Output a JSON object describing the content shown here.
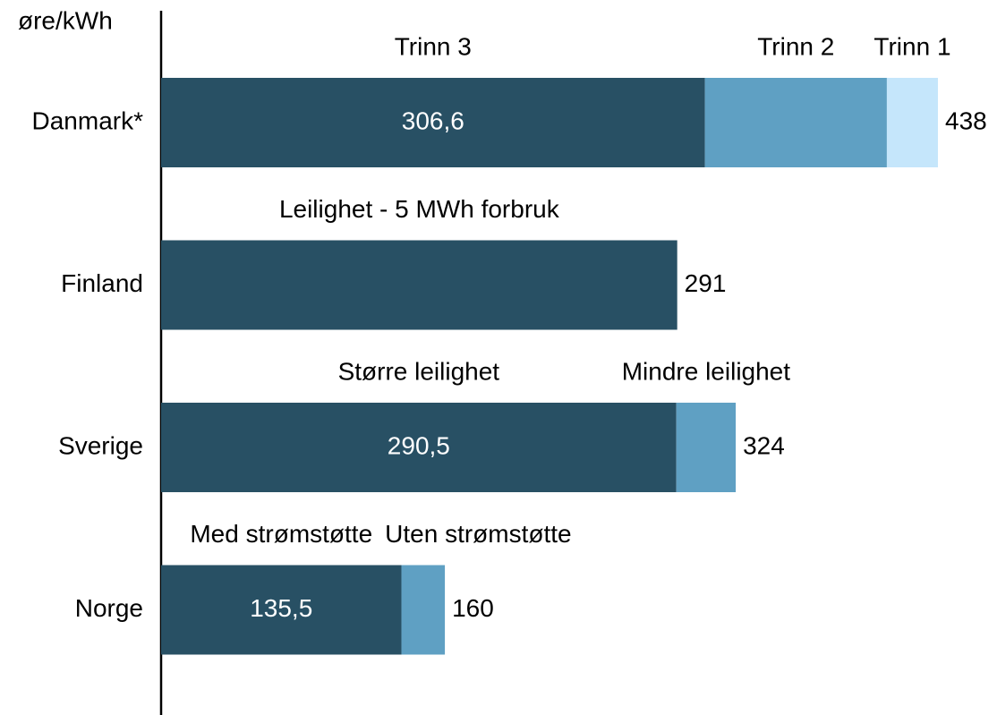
{
  "chart_data": {
    "type": "bar",
    "orientation": "horizontal",
    "stacked": true,
    "unit_label": "øre/kWh",
    "bars": [
      {
        "category": "Danmark*",
        "total": 438,
        "segments": [
          {
            "name": "Trinn 3",
            "value": 306.6,
            "value_label": "306,6",
            "color": "#285064"
          },
          {
            "name": "Trinn 2",
            "value": 102.6,
            "color": "#5fa0c3"
          },
          {
            "name": "Trinn 1",
            "value": 28.8,
            "color": "#c5e6fb"
          }
        ]
      },
      {
        "category": "Finland",
        "total": 291,
        "segments": [
          {
            "name": "Leilighet - 5 MWh forbruk",
            "value": 291,
            "color": "#285064"
          }
        ]
      },
      {
        "category": "Sverige",
        "total": 324,
        "segments": [
          {
            "name": "Større leilighet",
            "value": 290.5,
            "value_label": "290,5",
            "color": "#285064"
          },
          {
            "name": "Mindre leilighet",
            "value": 33.5,
            "color": "#5fa0c3"
          }
        ]
      },
      {
        "category": "Norge",
        "total": 160,
        "segments": [
          {
            "name": "Med strømstøtte",
            "value": 135.5,
            "value_label": "135,5",
            "color": "#285064"
          },
          {
            "name": "Uten strømstøtte",
            "value": 24.5,
            "color": "#5fa0c3"
          }
        ]
      }
    ]
  }
}
